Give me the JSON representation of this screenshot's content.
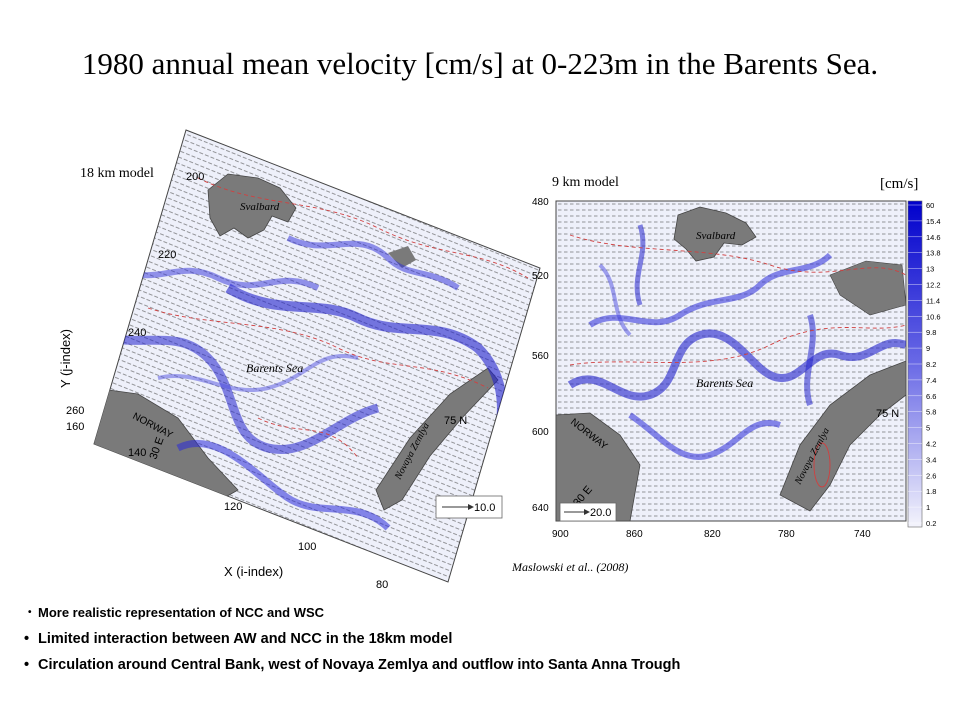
{
  "title": "1980 annual mean velocity [cm/s] at 0-223m in the Barents Sea.",
  "left_panel": {
    "caption": "18 km model",
    "ylabel": "Y (j-index)",
    "xlabel": "X (i-index)",
    "y_ticks": [
      "200",
      "220",
      "240",
      "260"
    ],
    "x_ticks": [
      "160",
      "140",
      "120",
      "100",
      "80"
    ],
    "labels": {
      "svalbard": "Svalbard",
      "barents": "Barents Sea",
      "norway": "NORWAY",
      "novaya": "Novaya Zemlya",
      "lon": "30 E",
      "lat": "75 N"
    },
    "reference_vector": "10.0"
  },
  "right_panel": {
    "caption": "9 km model",
    "y_ticks": [
      "480",
      "520",
      "560",
      "600",
      "640"
    ],
    "x_ticks": [
      "900",
      "860",
      "820",
      "780",
      "740"
    ],
    "labels": {
      "svalbard": "Svalbard",
      "barents": "Barents Sea",
      "norway": "NORWAY",
      "novaya": "Novaya Zemlya",
      "lon": "30 E",
      "lat": "75 N"
    },
    "reference_vector": "20.0"
  },
  "colorbar": {
    "unit": "[cm/s]",
    "ticks": [
      "60",
      "15.4",
      "14.6",
      "13.8",
      "13",
      "12.2",
      "11.4",
      "10.6",
      "9.8",
      "9",
      "8.2",
      "7.4",
      "6.6",
      "5.8",
      "5",
      "4.2",
      "3.4",
      "2.6",
      "1.8",
      "1",
      "0.2"
    ]
  },
  "citation": "Maslowski et al.. (2008)",
  "bullets": [
    "More realistic representation of NCC and WSC",
    "Limited interaction between AW and NCC in the 18km model",
    "Circulation around Central Bank, west of Novaya Zemlya and outflow into Santa Anna Trough"
  ],
  "colors": {
    "current": "#2a2ad8",
    "land": "#777777",
    "contour": "#d04040"
  }
}
